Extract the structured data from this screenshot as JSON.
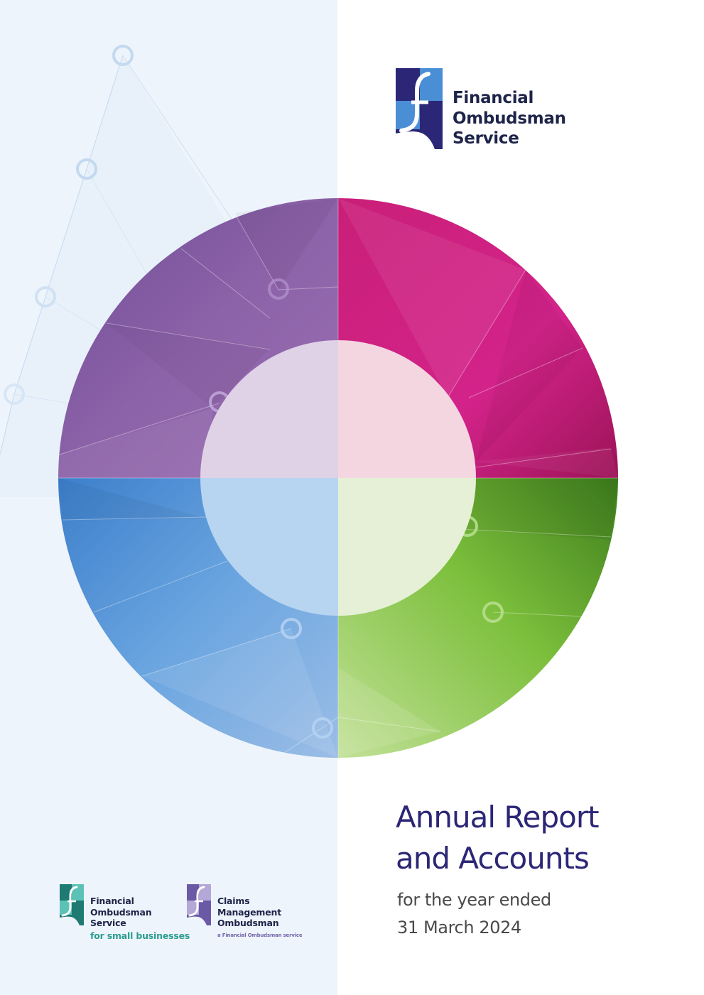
{
  "brand": {
    "line1": "Financial",
    "line2": "Ombudsman",
    "line3": "Service",
    "icon": "fos-f-logo-icon"
  },
  "title": {
    "line1": "Annual Report",
    "line2": "and Accounts"
  },
  "subtitle": {
    "line1": "for the year ended",
    "line2": "31 March 2024"
  },
  "footer_logos": [
    {
      "line1": "Financial",
      "line2": "Ombudsman",
      "line3": "Service",
      "tagline": "for small businesses",
      "icon": "fos-small-business-logo-icon",
      "accent": "#2a9d8f"
    },
    {
      "line1": "Claims",
      "line2": "Management",
      "line3": "Ombudsman",
      "tagline": "a Financial Ombudsman service",
      "icon": "cmo-logo-icon",
      "accent": "#7466ad"
    }
  ],
  "colors": {
    "navy": "#2b2676",
    "magenta": "#cf1f7a",
    "purple": "#8a5aa5",
    "blue": "#4a90d9",
    "green": "#6db33f",
    "panel": "#eef4fb"
  }
}
